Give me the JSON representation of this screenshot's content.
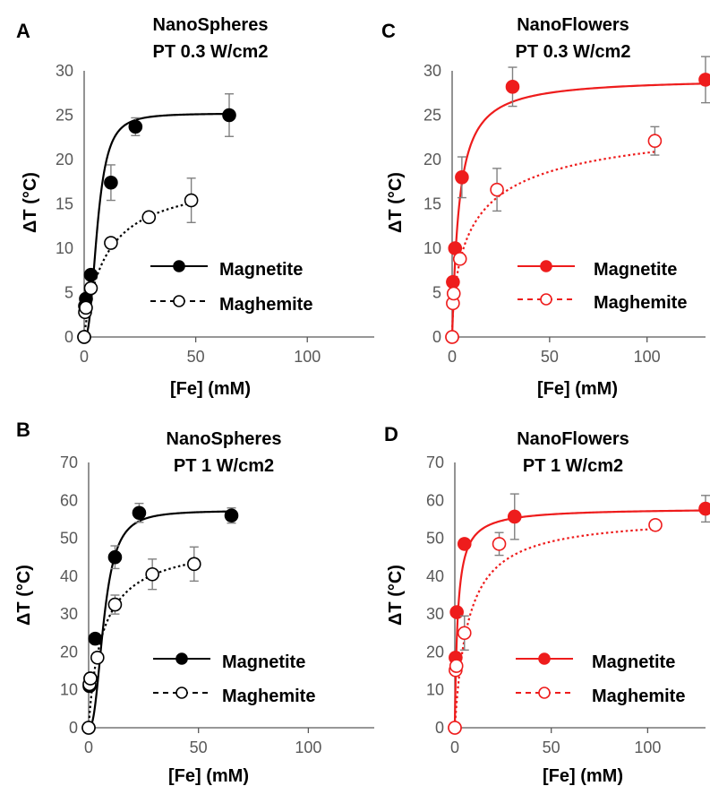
{
  "colors": {
    "black": "#000000",
    "red": "#ee1c1c",
    "axis": "#595959",
    "errorbar": "#808080"
  },
  "chart_data": [
    {
      "panel": "A",
      "type": "scatter",
      "title": [
        "NanoSpheres",
        "PT 0.3 W/cm2"
      ],
      "xlabel": "[Fe] (mM)",
      "ylabel": "ΔT (°C)",
      "xlim": [
        0,
        130
      ],
      "ylim": [
        0,
        30
      ],
      "xticks": [
        0,
        50,
        100
      ],
      "yticks": [
        0,
        5,
        10,
        15,
        20,
        25,
        30
      ],
      "legend_position": "bottom-right",
      "color": "#000000",
      "series": [
        {
          "name": "Magnetite",
          "marker": "filled",
          "line": "solid",
          "x": [
            0,
            0.4,
            0.8,
            3,
            12,
            23,
            65
          ],
          "y": [
            0,
            3.5,
            4.3,
            7,
            17.4,
            23.7,
            25
          ],
          "err": [
            0,
            0,
            0,
            0,
            2,
            1,
            2.4
          ],
          "fit": {
            "ymax": 25.2,
            "k": 6,
            "n": 2.6
          }
        },
        {
          "name": "Maghemite",
          "marker": "open",
          "line": "dotted",
          "x": [
            0,
            0.4,
            0.8,
            3,
            12,
            29,
            48
          ],
          "y": [
            0,
            2.8,
            3.3,
            5.5,
            10.6,
            13.5,
            15.4
          ],
          "err": [
            0,
            0,
            0,
            0,
            0,
            0,
            2.5
          ],
          "fit": {
            "ymax": 18.5,
            "k": 10,
            "n": 0.95
          }
        }
      ]
    },
    {
      "panel": "B",
      "type": "scatter",
      "title": [
        "NanoSpheres",
        "PT 1 W/cm2"
      ],
      "xlabel": "[Fe] (mM)",
      "ylabel": "ΔT (°C)",
      "xlim": [
        0,
        130
      ],
      "ylim": [
        0,
        70
      ],
      "xticks": [
        0,
        50,
        100
      ],
      "yticks": [
        0,
        10,
        20,
        30,
        40,
        50,
        60,
        70
      ],
      "legend_position": "bottom-right",
      "color": "#000000",
      "series": [
        {
          "name": "Magnetite",
          "marker": "filled",
          "line": "solid",
          "x": [
            0,
            0.4,
            0.8,
            3,
            12,
            23,
            65
          ],
          "y": [
            0,
            11,
            13,
            23.5,
            45,
            56.7,
            56
          ],
          "err": [
            0,
            0,
            0,
            0,
            3,
            2.5,
            2
          ],
          "fit": {
            "ymax": 57.3,
            "k": 7,
            "n": 2.5
          }
        },
        {
          "name": "Maghemite",
          "marker": "open",
          "line": "dotted",
          "x": [
            0,
            0.4,
            0.8,
            4,
            12,
            29,
            48
          ],
          "y": [
            0,
            11.5,
            13,
            18.5,
            32.5,
            40.5,
            43.2
          ],
          "err": [
            0,
            0,
            0,
            0,
            2.5,
            4,
            4.5
          ],
          "fit": {
            "ymax": 50,
            "k": 6.5,
            "n": 0.95
          }
        }
      ]
    },
    {
      "panel": "C",
      "type": "scatter",
      "title": [
        "NanoFlowers",
        "PT 0.3 W/cm2"
      ],
      "xlabel": "[Fe] (mM)",
      "ylabel": "ΔT (°C)",
      "xlim": [
        0,
        130
      ],
      "ylim": [
        0,
        30
      ],
      "xticks": [
        0,
        50,
        100
      ],
      "yticks": [
        0,
        5,
        10,
        15,
        20,
        25,
        30
      ],
      "legend_position": "bottom-right",
      "color": "#ee1c1c",
      "series": [
        {
          "name": "Magnetite",
          "marker": "filled",
          "line": "solid",
          "x": [
            0,
            0.4,
            1.5,
            5,
            31,
            130
          ],
          "y": [
            0,
            6.2,
            10,
            18,
            28.2,
            29
          ],
          "err": [
            0,
            0,
            0,
            2.3,
            2.2,
            2.6
          ],
          "fit": {
            "ymax": 29.2,
            "k": 3.5,
            "n": 1.05
          }
        },
        {
          "name": "Maghemite",
          "marker": "open",
          "line": "dotted",
          "x": [
            0,
            0.4,
            0.8,
            4,
            23,
            104
          ],
          "y": [
            0,
            3.8,
            4.9,
            8.8,
            16.6,
            22.1
          ],
          "err": [
            0,
            0,
            0,
            0,
            2.4,
            1.6
          ],
          "fit": {
            "ymax": 26,
            "k": 12,
            "n": 0.65
          }
        }
      ]
    },
    {
      "panel": "D",
      "type": "scatter",
      "title": [
        "NanoFlowers",
        "PT 1 W/cm2"
      ],
      "xlabel": "[Fe] (mM)",
      "ylabel": "ΔT (°C)",
      "xlim": [
        0,
        130
      ],
      "ylim": [
        0,
        70
      ],
      "xticks": [
        0,
        50,
        100
      ],
      "yticks": [
        0,
        10,
        20,
        30,
        40,
        50,
        60,
        70
      ],
      "legend_position": "bottom-right",
      "color": "#ee1c1c",
      "series": [
        {
          "name": "Magnetite",
          "marker": "filled",
          "line": "solid",
          "x": [
            0,
            0.4,
            1,
            5,
            31,
            130
          ],
          "y": [
            0,
            18.5,
            30.5,
            48.5,
            55.7,
            57.8
          ],
          "err": [
            0,
            0,
            0,
            0,
            6,
            3.5
          ],
          "fit": {
            "ymax": 58,
            "k": 1.5,
            "n": 1
          }
        },
        {
          "name": "Maghemite",
          "marker": "open",
          "line": "dotted",
          "x": [
            0,
            0.4,
            0.8,
            5,
            23,
            104
          ],
          "y": [
            0,
            15.2,
            16.3,
            25,
            48.5,
            53.5
          ],
          "err": [
            0,
            0,
            0,
            4.5,
            3,
            0
          ],
          "fit": {
            "ymax": 56,
            "k": 7,
            "n": 1
          }
        }
      ]
    }
  ]
}
